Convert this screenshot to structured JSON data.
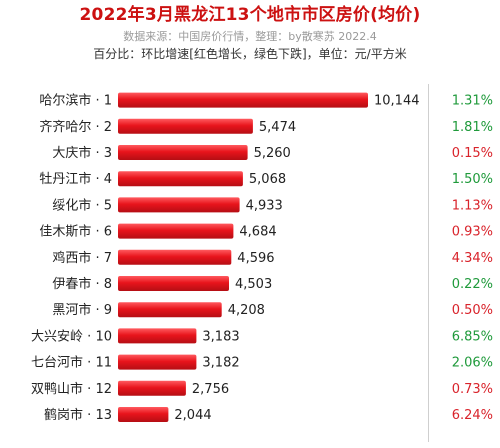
{
  "header": {
    "title": "2022年3月黑龙江13个地市市区房价(均价)",
    "subtitle": "数据来源：中国房价行情，整理：by散寒苏 2022.4",
    "note": "百分比：环比增速[红色增长，绿色下跌]，单位：元/平方米"
  },
  "colors": {
    "title": "#cc1111",
    "bar": "#e8141c",
    "increase": "#d9232b",
    "decrease": "#1f9a3b"
  },
  "chart_data": {
    "type": "bar",
    "orientation": "horizontal",
    "unit": "元/平方米",
    "categories": [
      "哈尔滨市 · 1",
      "齐齐哈尔 · 2",
      "大庆市 · 3",
      "牡丹江市 · 4",
      "绥化市 · 5",
      "佳木斯市 · 6",
      "鸡西市 · 7",
      "伊春市 · 8",
      "黑河市 · 9",
      "大兴安岭 · 10",
      "七台河市 · 11",
      "双鸭山市 · 12",
      "鹤岗市 · 13"
    ],
    "values": [
      10144,
      5474,
      5260,
      5068,
      4933,
      4684,
      4596,
      4503,
      4208,
      3183,
      3182,
      2756,
      2044
    ],
    "value_labels": [
      "10,144",
      "5,474",
      "5,260",
      "5,068",
      "4,933",
      "4,684",
      "4,596",
      "4,503",
      "4,208",
      "3,183",
      "3,182",
      "2,756",
      "2,044"
    ],
    "mom_change": [
      "1.31%",
      "1.81%",
      "0.15%",
      "1.50%",
      "1.13%",
      "0.93%",
      "4.34%",
      "0.22%",
      "0.50%",
      "6.85%",
      "2.06%",
      "0.73%",
      "6.24%"
    ],
    "mom_direction": [
      "down",
      "down",
      "up",
      "down",
      "up",
      "up",
      "up",
      "down",
      "up",
      "down",
      "down",
      "up",
      "up"
    ],
    "xlim": [
      0,
      10144
    ],
    "grid": false,
    "legend": "none"
  }
}
